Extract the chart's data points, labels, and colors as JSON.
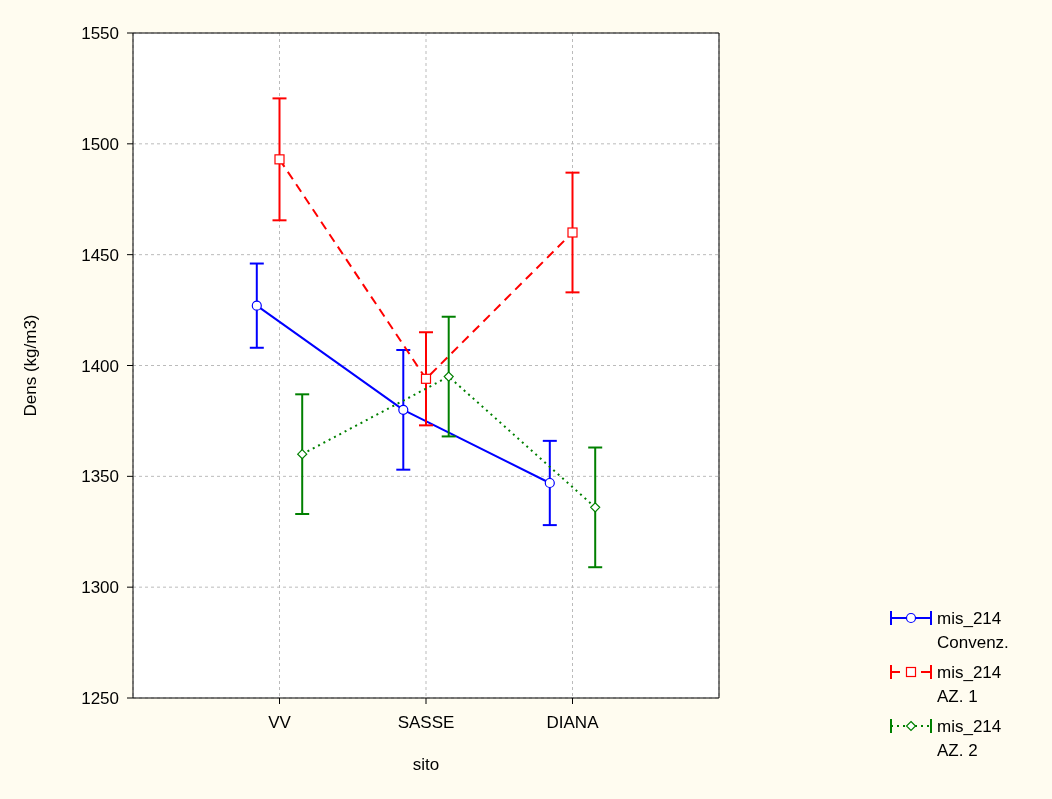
{
  "chart_data": {
    "type": "line",
    "xlabel": "sito",
    "ylabel": "Dens (kg/m3)",
    "categories": [
      "VV",
      "SASSE",
      "DIANA"
    ],
    "series": [
      {
        "name": "mis_214 Convenz.",
        "color": "#0000ff",
        "values": [
          1427,
          1380,
          1347
        ],
        "errors": [
          19,
          27,
          19
        ],
        "marker": "circle",
        "line_style": "solid"
      },
      {
        "name": "mis_214 AZ. 1",
        "color": "#ff0000",
        "values": [
          1493,
          1394,
          1460
        ],
        "errors": [
          27.5,
          21,
          27
        ],
        "marker": "square",
        "line_style": "dashed"
      },
      {
        "name": "mis_214 AZ. 2",
        "color": "#008000",
        "values": [
          1360,
          1395,
          1336
        ],
        "errors": [
          27,
          27,
          27
        ],
        "marker": "diamond",
        "line_style": "dotted"
      }
    ],
    "ylim": [
      1250,
      1550
    ],
    "yticks": [
      1250,
      1300,
      1350,
      1400,
      1450,
      1500,
      1550
    ],
    "grid": true,
    "legend": "bottom right"
  }
}
